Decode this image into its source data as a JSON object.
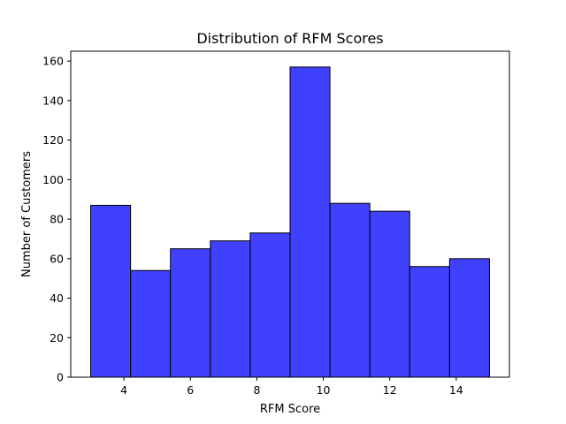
{
  "chart_data": {
    "type": "bar",
    "title": "Distribution of RFM Scores",
    "xlabel": "RFM Score",
    "ylabel": "Number of Customers",
    "bin_edges": [
      3,
      4.2,
      5.4,
      6.6,
      7.8,
      9,
      10.2,
      11.4,
      12.6,
      13.8,
      15
    ],
    "values": [
      87,
      54,
      65,
      69,
      73,
      157,
      88,
      84,
      56,
      60
    ],
    "xlim": [
      2.4,
      15.6
    ],
    "ylim": [
      0,
      165
    ],
    "xticks": [
      4,
      6,
      8,
      10,
      12,
      14
    ],
    "yticks": [
      0,
      20,
      40,
      60,
      80,
      100,
      120,
      140,
      160
    ],
    "bar_color": "#4040ff",
    "grid": false
  }
}
